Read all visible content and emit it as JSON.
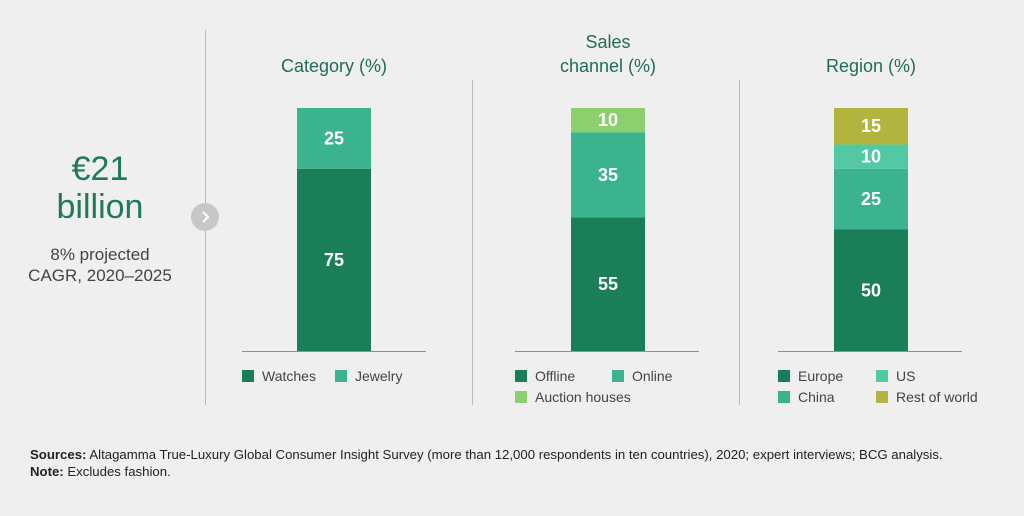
{
  "headline": {
    "value_line1": "€21",
    "value_line2": "billion",
    "note_line1": "8% projected",
    "note_line2": "CAGR, 2020–2025",
    "arrow_icon": "chevron-right-icon"
  },
  "colors": {
    "dark_green": "#1a7f58",
    "teal": "#3cb38f",
    "light_green": "#8ccf6e",
    "olive": "#b2b43e"
  },
  "chart_data": [
    {
      "type": "bar",
      "stacked": true,
      "title": "Category (%)",
      "categories": [
        ""
      ],
      "series": [
        {
          "name": "Watches",
          "values": [
            75
          ],
          "color": "#1a7f58"
        },
        {
          "name": "Jewelry",
          "values": [
            25
          ],
          "color": "#3cb38f"
        }
      ],
      "ylim": [
        0,
        100
      ],
      "legend": "bottom",
      "legend_rows": [
        [
          "Watches",
          "Jewelry"
        ]
      ]
    },
    {
      "type": "bar",
      "stacked": true,
      "title": "Sales channel (%)",
      "title_lines": [
        "Sales",
        "channel (%)"
      ],
      "categories": [
        ""
      ],
      "series": [
        {
          "name": "Offline",
          "values": [
            55
          ],
          "color": "#1a7f58"
        },
        {
          "name": "Online",
          "values": [
            35
          ],
          "color": "#3cb38f"
        },
        {
          "name": "Auction houses",
          "values": [
            10
          ],
          "color": "#8ccf6e"
        }
      ],
      "ylim": [
        0,
        100
      ],
      "legend": "bottom",
      "legend_rows": [
        [
          "Offline",
          "Online"
        ],
        [
          "Auction houses"
        ]
      ]
    },
    {
      "type": "bar",
      "stacked": true,
      "title": "Region (%)",
      "categories": [
        ""
      ],
      "series": [
        {
          "name": "Europe",
          "values": [
            50
          ],
          "color": "#1a7f58"
        },
        {
          "name": "China",
          "values": [
            25
          ],
          "color": "#3cb38f"
        },
        {
          "name": "US",
          "values": [
            10
          ],
          "color": "#52c9a4"
        },
        {
          "name": "Rest of world",
          "values": [
            15
          ],
          "color": "#b2b43e"
        }
      ],
      "ylim": [
        0,
        100
      ],
      "legend": "bottom",
      "legend_rows": [
        [
          "Europe",
          "US"
        ],
        [
          "China",
          "Rest of world"
        ]
      ]
    }
  ],
  "footer": {
    "sources_label": "Sources:",
    "sources_text": "Altagamma True-Luxury Global Consumer Insight Survey (more than 12,000 respondents in ten countries), 2020; expert interviews; BCG analysis.",
    "note_label": "Note:",
    "note_text": "Excludes fashion."
  }
}
